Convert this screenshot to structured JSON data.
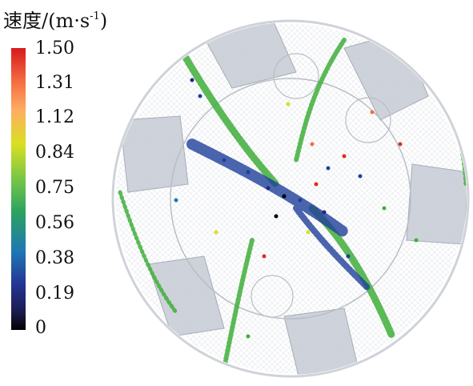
{
  "legend": {
    "title_main": "速度/(m·s",
    "title_sup": "-1",
    "title_close": ")",
    "ticks": [
      "1.50",
      "1.31",
      "1.12",
      "0.84",
      "0.75",
      "0.56",
      "0.38",
      "0.19",
      "0"
    ]
  },
  "colors": {
    "blade": "#c9ced6",
    "mesh": "#eef0f3",
    "green": "#3fae3a",
    "blue": "#1f3f9b",
    "red": "#d7301f"
  }
}
